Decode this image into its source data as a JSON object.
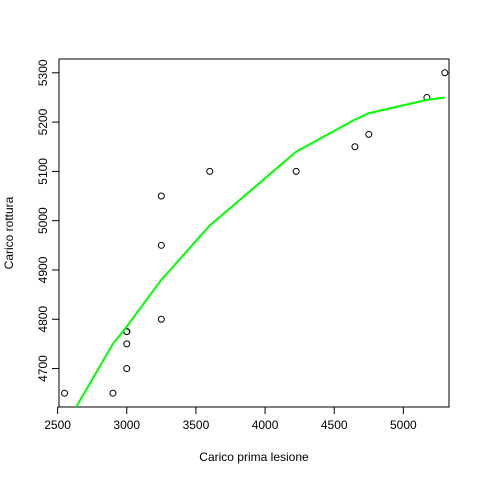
{
  "chart_data": {
    "type": "scatter",
    "title": "",
    "xlabel": "Carico prima lesione",
    "ylabel": "Carico rottura",
    "xlim": [
      2510,
      5330
    ],
    "ylim": [
      4622,
      5328
    ],
    "xticks": [
      2500,
      3000,
      3500,
      4000,
      4500,
      5000
    ],
    "yticks": [
      4700,
      4800,
      4900,
      5000,
      5100,
      5200,
      5300
    ],
    "grid": false,
    "legend": "none",
    "series": [
      {
        "type": "scatter",
        "marker": "open-circle",
        "color": "#000000",
        "points": [
          [
            2550,
            4650
          ],
          [
            2900,
            4650
          ],
          [
            3000,
            4700
          ],
          [
            3000,
            4750
          ],
          [
            3000,
            4775
          ],
          [
            3000,
            4775
          ],
          [
            3250,
            4800
          ],
          [
            3250,
            4950
          ],
          [
            3250,
            5050
          ],
          [
            3600,
            5100
          ],
          [
            4225,
            5100
          ],
          [
            4650,
            5150
          ],
          [
            4750,
            5175
          ],
          [
            5170,
            5250
          ],
          [
            5300,
            5300
          ]
        ]
      },
      {
        "type": "line",
        "color": "#00ff00",
        "points": [
          [
            2630,
            4620
          ],
          [
            2900,
            4750
          ],
          [
            3000,
            4785
          ],
          [
            3250,
            4880
          ],
          [
            3600,
            4990
          ],
          [
            4225,
            5140
          ],
          [
            4650,
            5205
          ],
          [
            4750,
            5218
          ],
          [
            5170,
            5245
          ],
          [
            5300,
            5250
          ]
        ]
      }
    ]
  }
}
